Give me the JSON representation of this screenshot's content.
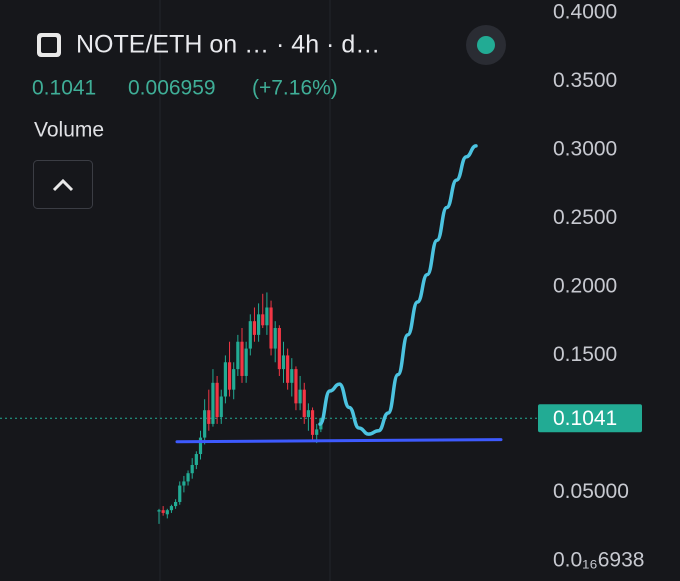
{
  "header": {
    "title": "NOTE/ETH on … · 4h · d…",
    "price": "0.1041",
    "change": "0.006959",
    "change_pct": "(+7.16%)",
    "volume_label": "Volume"
  },
  "chart_data": {
    "type": "candlestick",
    "up_color": "#22ab94",
    "down_color": "#f23645",
    "open": [
      0.036,
      0.037,
      0.034,
      0.037,
      0.04,
      0.043,
      0.055,
      0.058,
      0.064,
      0.07,
      0.078,
      0.09,
      0.11,
      0.1,
      0.13,
      0.105,
      0.12,
      0.145,
      0.125,
      0.14,
      0.16,
      0.135,
      0.155,
      0.175,
      0.165,
      0.18,
      0.172,
      0.185,
      0.155,
      0.17,
      0.14,
      0.15,
      0.13,
      0.14,
      0.115,
      0.125,
      0.105,
      0.11,
      0.092,
      0.096
    ],
    "high": [
      0.038,
      0.04,
      0.038,
      0.041,
      0.045,
      0.058,
      0.062,
      0.066,
      0.075,
      0.08,
      0.095,
      0.118,
      0.125,
      0.14,
      0.135,
      0.125,
      0.15,
      0.16,
      0.145,
      0.165,
      0.17,
      0.16,
      0.18,
      0.185,
      0.188,
      0.195,
      0.196,
      0.19,
      0.175,
      0.172,
      0.16,
      0.155,
      0.148,
      0.142,
      0.135,
      0.13,
      0.115,
      0.112,
      0.1,
      0.104
    ],
    "low": [
      0.027,
      0.033,
      0.031,
      0.035,
      0.038,
      0.041,
      0.05,
      0.055,
      0.06,
      0.067,
      0.074,
      0.085,
      0.095,
      0.098,
      0.1,
      0.1,
      0.115,
      0.12,
      0.118,
      0.135,
      0.13,
      0.13,
      0.15,
      0.16,
      0.16,
      0.17,
      0.165,
      0.15,
      0.145,
      0.135,
      0.13,
      0.125,
      0.12,
      0.11,
      0.11,
      0.1,
      0.095,
      0.088,
      0.086,
      0.094
    ],
    "close": [
      0.037,
      0.035,
      0.037,
      0.04,
      0.043,
      0.055,
      0.058,
      0.064,
      0.07,
      0.078,
      0.09,
      0.11,
      0.1,
      0.13,
      0.105,
      0.12,
      0.145,
      0.125,
      0.14,
      0.16,
      0.135,
      0.155,
      0.175,
      0.165,
      0.18,
      0.172,
      0.185,
      0.155,
      0.17,
      0.14,
      0.15,
      0.13,
      0.14,
      0.115,
      0.125,
      0.105,
      0.11,
      0.092,
      0.096,
      0.1041
    ],
    "ylim": [
      -0.0147,
      0.4095
    ],
    "yticks": [
      {
        "value": 6.938e-17,
        "label": "0.0₁₆6938"
      },
      {
        "value": 0.05,
        "label": "0.05000"
      },
      {
        "value": 0.15,
        "label": "0.1500"
      },
      {
        "value": 0.2,
        "label": "0.2000"
      },
      {
        "value": 0.25,
        "label": "0.2500"
      },
      {
        "value": 0.3,
        "label": "0.3000"
      },
      {
        "value": 0.35,
        "label": "0.3500"
      },
      {
        "value": 0.4,
        "label": "0.4000"
      }
    ],
    "last_price": 0.1041,
    "last_price_color": "#22ab94",
    "support_line": {
      "color": "#3d5afe",
      "values": [
        0.087,
        0.0885
      ]
    },
    "projection": {
      "color": "#4cc3e0",
      "values": [
        0.0998,
        0.124,
        0.129,
        0.112,
        0.097,
        0.0925,
        0.095,
        0.108,
        0.136,
        0.165,
        0.189,
        0.209,
        0.234,
        0.258,
        0.278,
        0.295,
        0.303
      ]
    }
  }
}
